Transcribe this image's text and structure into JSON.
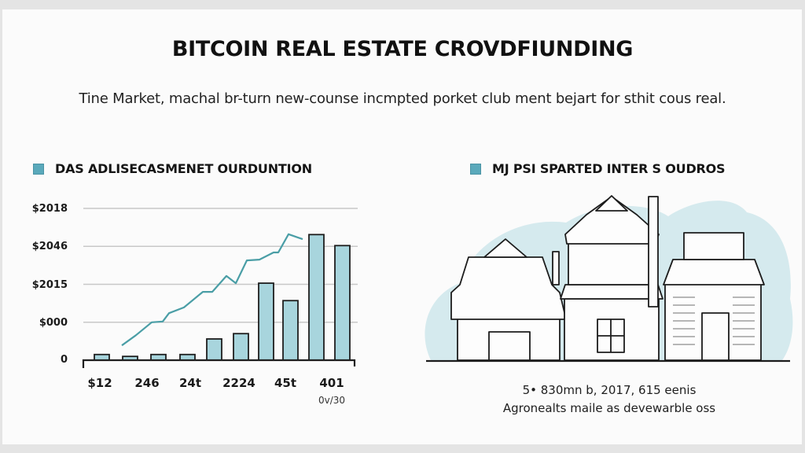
{
  "header": {
    "title": "BITCOIN REAL ESTATE CROVDFIUNDING",
    "subtitle": "Tine Market, machal br-turn new-counse incmpted porket club ment bejart for sthit cous real."
  },
  "left_panel": {
    "heading": "DAS ADLISECASMENET OURDUNTION",
    "legend_color": "#5aa9bb"
  },
  "right_panel": {
    "heading": "MJ PSI SPARTED INTER S OUDROS",
    "legend_color": "#5aa9bb",
    "illustration": "three-buildings-icon",
    "caption_line1": "5• 830mn b, 2017, 615 eenis",
    "caption_line2": "Agronealts maile as  devewarble oss"
  },
  "colors": {
    "bar_fill": "#a8d5dd",
    "bar_stroke": "#1e1e1e",
    "line": "#4a9ea6",
    "grid": "#c8c8c8",
    "illustration_bg": "#d5eaee"
  },
  "chart_data": {
    "type": "bar",
    "title": "DAS ADLISECASMENET OURDUNTION",
    "xlabel": "",
    "ylabel": "",
    "y_tick_labels": [
      "0",
      "$000",
      "$2015",
      "$2046",
      "$2018"
    ],
    "x_tick_labels": [
      "$12",
      "246",
      "24t",
      "2224",
      "45t",
      "401"
    ],
    "x_sub_label": "0v/30",
    "grid": true,
    "legend_position": "top-left",
    "ylim": [
      0,
      4
    ],
    "series": [
      {
        "name": "bars",
        "type": "bar",
        "values": [
          0.15,
          0.1,
          0.15,
          0.15,
          0.56,
          0.7,
          2.03,
          1.57,
          3.31,
          3.02
        ]
      },
      {
        "name": "trend",
        "type": "line",
        "points": [
          [
            155,
            0.39
          ],
          [
            173,
            0.66
          ],
          [
            193,
            1.0
          ],
          [
            207,
            1.02
          ],
          [
            215,
            1.24
          ],
          [
            234,
            1.39
          ],
          [
            258,
            1.8
          ],
          [
            270,
            1.8
          ],
          [
            288,
            2.22
          ],
          [
            300,
            2.03
          ],
          [
            314,
            2.63
          ],
          [
            330,
            2.65
          ],
          [
            348,
            2.84
          ],
          [
            354,
            2.84
          ],
          [
            367,
            3.32
          ],
          [
            385,
            3.19
          ]
        ]
      }
    ]
  }
}
